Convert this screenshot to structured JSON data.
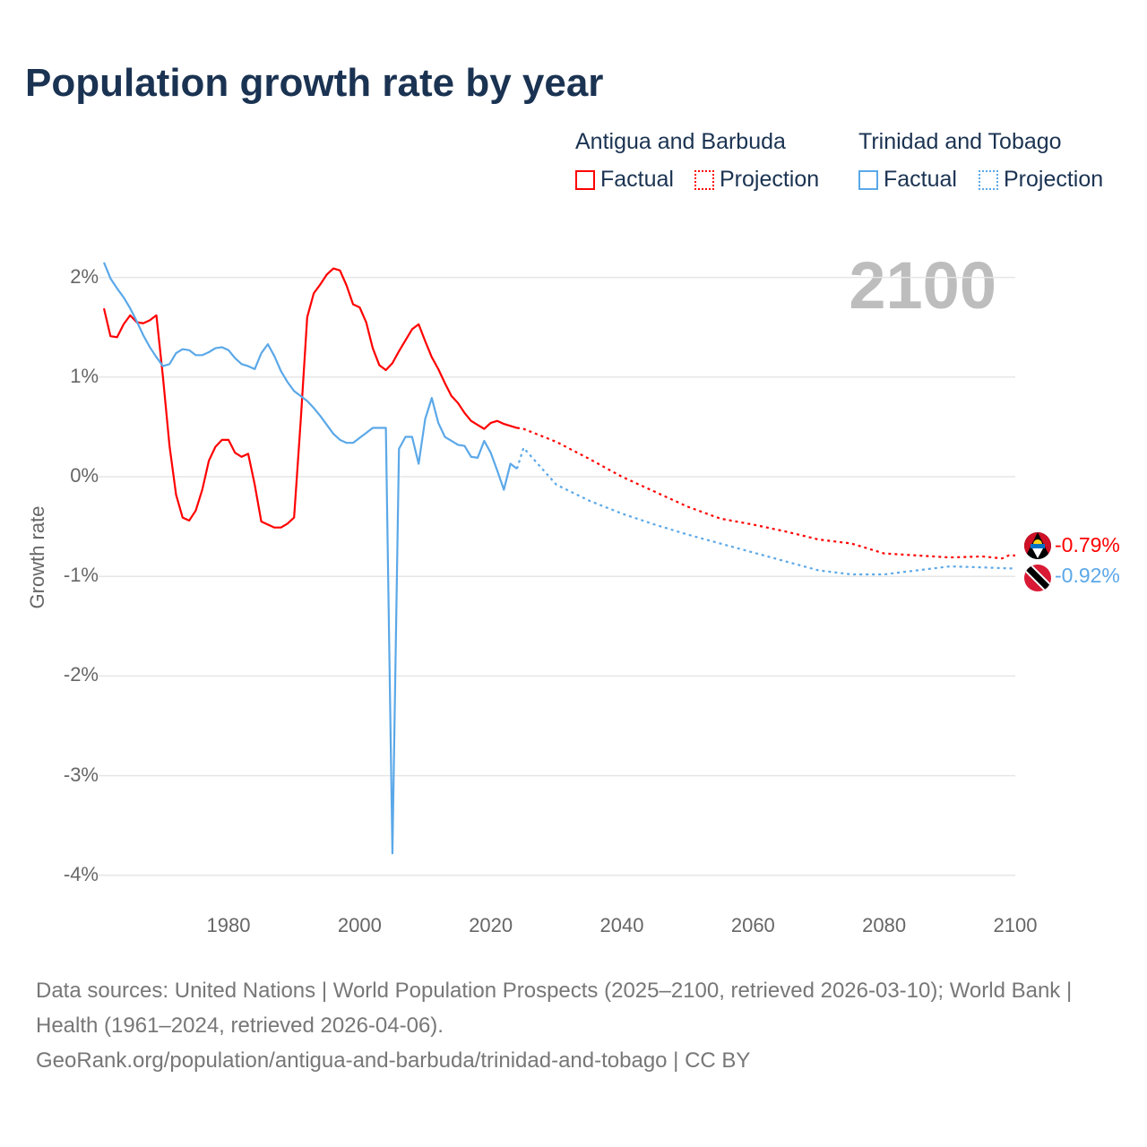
{
  "title": "Population growth rate by year",
  "legend": {
    "groups": [
      {
        "name": "Antigua and Barbuda",
        "color": "#ff0000",
        "factual": "Factual",
        "projection": "Projection"
      },
      {
        "name": "Trinidad and Tobago",
        "color": "#5ba8e8",
        "factual": "Factual",
        "projection": "Projection"
      }
    ]
  },
  "current_year": "2100",
  "end_labels": [
    "-0.79%",
    "-0.92%"
  ],
  "flags": [
    "antigua-and-barbuda-flag-icon",
    "trinidad-and-tobago-flag-icon"
  ],
  "footer": {
    "line1": "Data sources: United Nations | World Population Prospects (2025–2100, retrieved 2026-03-10); World Bank | Health (1961–2024, retrieved 2026-04-06).",
    "line2": "GeoRank.org/population/antigua-and-barbuda/trinidad-and-tobago | CC BY"
  },
  "chart_data": {
    "type": "line",
    "title": "Population growth rate by year",
    "xlabel": "",
    "ylabel": "Growth rate",
    "xlim": [
      1961,
      2100
    ],
    "ylim": [
      -4.2,
      2.3
    ],
    "yticks": [
      2,
      1,
      0,
      -1,
      -2,
      -3,
      -4
    ],
    "ytick_labels": [
      "2%",
      "1%",
      "0%",
      "-1%",
      "-2%",
      "-3%",
      "-4%"
    ],
    "xticks": [
      1980,
      2000,
      2020,
      2040,
      2060,
      2080,
      2100
    ],
    "xtick_labels": [
      "1980",
      "2000",
      "2020",
      "2040",
      "2060",
      "2080",
      "2100"
    ],
    "grid": true,
    "series": [
      {
        "name": "Antigua and Barbuda",
        "color": "#ff0000",
        "factual": {
          "x_start": 1961,
          "values": [
            1.69,
            1.41,
            1.4,
            1.53,
            1.62,
            1.55,
            1.54,
            1.57,
            1.62,
            1.0,
            0.31,
            -0.18,
            -0.41,
            -0.44,
            -0.34,
            -0.13,
            0.16,
            0.3,
            0.37,
            0.37,
            0.24,
            0.2,
            0.23,
            -0.08,
            -0.45,
            -0.48,
            -0.51,
            -0.51,
            -0.47,
            -0.41,
            0.55,
            1.6,
            1.84,
            1.93,
            2.03,
            2.09,
            2.07,
            1.92,
            1.73,
            1.7,
            1.55,
            1.29,
            1.12,
            1.07,
            1.14,
            1.26,
            1.37,
            1.48,
            1.53,
            1.36,
            1.2,
            1.08,
            0.94,
            0.81,
            0.74,
            0.64,
            0.56,
            0.52,
            0.48,
            0.54,
            0.56,
            0.53,
            0.51,
            0.49
          ]
        },
        "projection": {
          "x": [
            2024,
            2025,
            2030,
            2035,
            2040,
            2045,
            2050,
            2055,
            2060,
            2065,
            2070,
            2075,
            2080,
            2085,
            2090,
            2095,
            2098,
            2099,
            2100
          ],
          "values": [
            0.49,
            0.48,
            0.35,
            0.18,
            0.0,
            -0.15,
            -0.3,
            -0.42,
            -0.48,
            -0.55,
            -0.63,
            -0.67,
            -0.77,
            -0.79,
            -0.81,
            -0.8,
            -0.82,
            -0.79,
            -0.79
          ]
        }
      },
      {
        "name": "Trinidad and Tobago",
        "color": "#5ba8e8",
        "factual": {
          "x_start": 1961,
          "values": [
            2.15,
            1.99,
            1.89,
            1.8,
            1.69,
            1.56,
            1.42,
            1.3,
            1.2,
            1.11,
            1.13,
            1.24,
            1.28,
            1.27,
            1.22,
            1.22,
            1.25,
            1.29,
            1.3,
            1.27,
            1.19,
            1.13,
            1.11,
            1.08,
            1.24,
            1.33,
            1.21,
            1.06,
            0.95,
            0.86,
            0.81,
            0.76,
            0.69,
            0.61,
            0.52,
            0.43,
            0.37,
            0.34,
            0.34,
            0.39,
            0.44,
            0.49,
            0.49,
            0.49,
            -3.78,
            0.28,
            0.4,
            0.4,
            0.13,
            0.58,
            0.79,
            0.54,
            0.4,
            0.36,
            0.32,
            0.31,
            0.2,
            0.19,
            0.36,
            0.24,
            0.06,
            -0.13,
            0.13,
            0.08
          ]
        },
        "projection": {
          "x": [
            2024,
            2025,
            2030,
            2035,
            2040,
            2045,
            2050,
            2055,
            2060,
            2065,
            2070,
            2075,
            2080,
            2085,
            2090,
            2095,
            2099,
            2100
          ],
          "values": [
            0.08,
            0.29,
            -0.08,
            -0.24,
            -0.37,
            -0.48,
            -0.58,
            -0.67,
            -0.76,
            -0.85,
            -0.94,
            -0.98,
            -0.98,
            -0.94,
            -0.9,
            -0.91,
            -0.92,
            -0.92
          ]
        }
      }
    ]
  }
}
